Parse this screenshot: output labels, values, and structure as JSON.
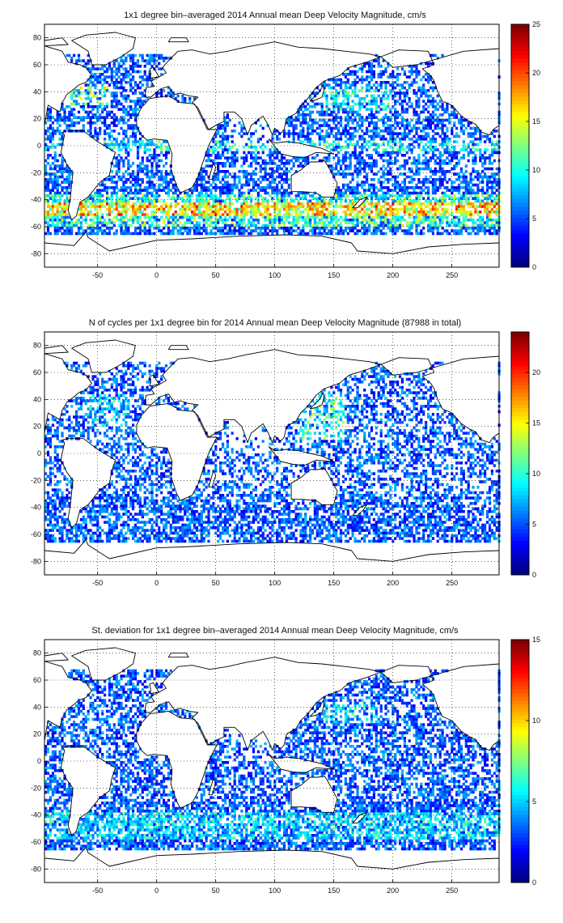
{
  "figure": {
    "panels": [
      {
        "title": "1x1 degree bin–averaged 2014 Annual mean Deep Velocity Magnitude, cm/s",
        "colorbar_ticks": [
          "0",
          "5",
          "10",
          "15",
          "20",
          "25"
        ],
        "colorbar_max": 25
      },
      {
        "title": "N of cycles per 1x1 degree bin for 2014 Annual mean Deep Velocity Magnitude (87988 in total)",
        "colorbar_ticks": [
          "0",
          "5",
          "10",
          "15",
          "20"
        ],
        "colorbar_max": 24
      },
      {
        "title": "St. deviation for 1x1 degree bin–averaged 2014 Annual mean Deep Velocity Magnitude, cm/s",
        "colorbar_ticks": [
          "0",
          "5",
          "10",
          "15"
        ],
        "colorbar_max": 15
      }
    ],
    "x_ticks": [
      "-50",
      "0",
      "50",
      "100",
      "150",
      "200",
      "250"
    ],
    "y_ticks": [
      "80",
      "60",
      "40",
      "20",
      "0",
      "-20",
      "-40",
      "-60",
      "-80"
    ],
    "x_range": [
      -95,
      290
    ],
    "y_range": [
      -90,
      90
    ],
    "grid": "dotted",
    "colormap": "jet"
  },
  "chart_data": [
    {
      "type": "heatmap",
      "title": "1x1 degree bin–averaged 2014 Annual mean Deep Velocity Magnitude, cm/s",
      "xlim": [
        -95,
        290
      ],
      "ylim": [
        -90,
        90
      ],
      "clim": [
        0,
        25
      ],
      "x_ticks": [
        -50,
        0,
        50,
        100,
        150,
        200,
        250
      ],
      "y_ticks": [
        -80,
        -60,
        -40,
        -20,
        0,
        20,
        40,
        60,
        80
      ],
      "colorbar_ticks": [
        0,
        5,
        10,
        15,
        20,
        25
      ]
    },
    {
      "type": "heatmap",
      "title": "N of cycles per 1x1 degree bin for 2014 Annual mean Deep Velocity Magnitude (87988 in total)",
      "xlim": [
        -95,
        290
      ],
      "ylim": [
        -90,
        90
      ],
      "clim": [
        0,
        24
      ],
      "x_ticks": [
        -50,
        0,
        50,
        100,
        150,
        200,
        250
      ],
      "y_ticks": [
        -80,
        -60,
        -40,
        -20,
        0,
        20,
        40,
        60,
        80
      ],
      "colorbar_ticks": [
        0,
        5,
        10,
        15,
        20
      ]
    },
    {
      "type": "heatmap",
      "title": "St. deviation for 1x1 degree bin–averaged 2014 Annual mean Deep Velocity Magnitude, cm/s",
      "xlim": [
        -95,
        290
      ],
      "ylim": [
        -90,
        90
      ],
      "clim": [
        0,
        15
      ],
      "x_ticks": [
        -50,
        0,
        50,
        100,
        150,
        200,
        250
      ],
      "y_ticks": [
        -80,
        -60,
        -40,
        -20,
        0,
        20,
        40,
        60,
        80
      ],
      "colorbar_ticks": [
        0,
        5,
        10,
        15
      ]
    }
  ]
}
